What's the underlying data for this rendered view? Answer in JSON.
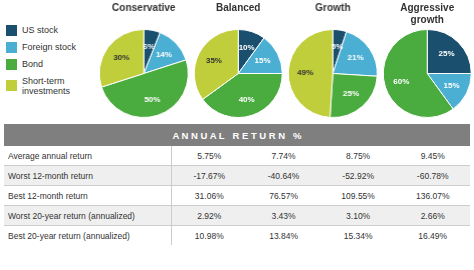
{
  "chart_data": [
    {
      "type": "pie",
      "title": "Conservative",
      "legend": "left",
      "data_labels": true,
      "categories": [
        "US stock",
        "Foreign stock",
        "Bond",
        "Short-term\ninvestments"
      ],
      "values": [
        6,
        14,
        50,
        30
      ],
      "value_labels": [
        "6%",
        "14%",
        "50%",
        "30%"
      ],
      "colors": [
        "#1a4f6e",
        "#4bafd4",
        "#4aab3e",
        "#bfce3a"
      ]
    },
    {
      "type": "pie",
      "title": "Balanced",
      "data_labels": true,
      "categories": [
        "US stock",
        "Foreign stock",
        "Bond",
        "Short-term\ninvestments"
      ],
      "values": [
        10,
        15,
        40,
        35
      ],
      "value_labels": [
        "10%",
        "15%",
        "40%",
        "35%"
      ],
      "colors": [
        "#1a4f6e",
        "#4bafd4",
        "#4aab3e",
        "#bfce3a"
      ]
    },
    {
      "type": "pie",
      "title": "Growth",
      "data_labels": true,
      "categories": [
        "US stock",
        "Foreign stock",
        "Bond",
        "Short-term\ninvestments"
      ],
      "values": [
        5,
        21,
        25,
        49
      ],
      "value_labels": [
        "5%",
        "21%",
        "25%",
        "49%"
      ],
      "colors": [
        "#1a4f6e",
        "#4bafd4",
        "#4aab3e",
        "#bfce3a"
      ]
    },
    {
      "type": "pie",
      "title": "Aggressive\ngrowth",
      "data_labels": true,
      "categories": [
        "US stock",
        "Foreign stock",
        "Bond"
      ],
      "values": [
        25,
        15,
        60
      ],
      "value_labels": [
        "25%",
        "15%",
        "60%"
      ],
      "colors": [
        "#1a4f6e",
        "#4bafd4",
        "#4aab3e"
      ]
    },
    {
      "type": "table",
      "title": "A N N U A L   R E T U R N   %",
      "color": "#7f7f7f",
      "categories": [
        "Average annual return",
        "Worst 12-month return",
        "Best 12-month return",
        "Worst 20-year return (annualized)",
        "Best 20-year return (annualized)"
      ],
      "series": [
        {
          "values": [
            5.75,
            -17.67,
            31.06,
            2.92,
            10.98
          ],
          "value_labels": [
            "5.75%",
            "-17.67%",
            "31.06%",
            "2.92%",
            "10.98%"
          ]
        },
        {
          "values": [
            7.74,
            -40.64,
            76.57,
            3.43,
            13.84
          ],
          "value_labels": [
            "7.74%",
            "-40.64%",
            "76.57%",
            "3.43%",
            "13.84%"
          ]
        },
        {
          "values": [
            8.75,
            -52.92,
            109.55,
            3.1,
            15.34
          ],
          "value_labels": [
            "8.75%",
            "-52.92%",
            "109.55%",
            "3.10%",
            "15.34%"
          ]
        },
        {
          "values": [
            9.45,
            -60.78,
            136.07,
            2.66,
            16.49
          ],
          "value_labels": [
            "9.45%",
            "-60.78%",
            "136.07%",
            "2.66%",
            "16.49%"
          ]
        }
      ]
    }
  ]
}
